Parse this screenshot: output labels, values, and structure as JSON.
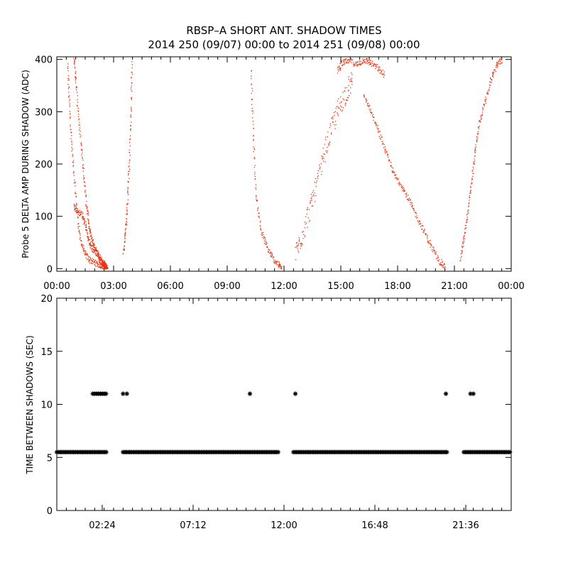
{
  "title_line1": "RBSP–A SHORT ANT. SHADOW TIMES",
  "title_line2": "2014 250 (09/07) 00:00 to 2014 251 (09/08) 00:00",
  "colors": {
    "top_points": "#e8320f",
    "bottom_points": "#000000",
    "axes": "#000000"
  },
  "chart_data": [
    {
      "type": "scatter",
      "name": "delta-amp-panel",
      "ylabel": "Probe 5 DELTA AMP DURING SHADOW (ADC)",
      "xlabel": "",
      "xlim": [
        0,
        24
      ],
      "ylim": [
        -5,
        405
      ],
      "yticks": [
        0,
        100,
        200,
        300,
        400
      ],
      "ytick_labels": [
        "0",
        "100",
        "200",
        "300",
        "400"
      ],
      "xticks": [
        0,
        3,
        6,
        9,
        12,
        15,
        18,
        21,
        24
      ],
      "xtick_labels": [
        "00:00",
        "03:00",
        "06:00",
        "09:00",
        "12:00",
        "15:00",
        "18:00",
        "21:00",
        "00:00"
      ],
      "series": [
        {
          "name": "shadow-1 descending",
          "x": [
            0.55,
            0.65,
            0.8,
            1.0,
            1.2,
            1.45,
            1.7,
            2.0,
            2.25,
            2.4,
            2.55,
            2.65
          ],
          "y": [
            390,
            310,
            220,
            130,
            60,
            30,
            18,
            12,
            8,
            5,
            3,
            1
          ]
        },
        {
          "name": "shadow-1 main",
          "x": [
            0.9,
            1.0,
            1.2,
            1.4,
            1.55,
            1.7,
            1.85,
            2.0,
            2.15,
            2.3,
            2.45,
            2.55,
            2.65
          ],
          "y": [
            405,
            350,
            260,
            180,
            120,
            80,
            55,
            40,
            28,
            15,
            8,
            4,
            2
          ]
        },
        {
          "name": "shadow-1 lower",
          "x": [
            0.9,
            1.05,
            1.3,
            1.5,
            1.65,
            1.85,
            2.1,
            2.3,
            2.5,
            2.6
          ],
          "y": [
            120,
            110,
            105,
            85,
            55,
            40,
            30,
            20,
            10,
            4
          ]
        },
        {
          "name": "shadow-2",
          "x": [
            3.5,
            3.6,
            3.7,
            3.8,
            3.9,
            3.95
          ],
          "y": [
            30,
            70,
            120,
            200,
            300,
            400
          ]
        },
        {
          "name": "shadow-3",
          "x": [
            10.25,
            10.35,
            10.5,
            10.8,
            11.1,
            11.4,
            11.7,
            11.85
          ],
          "y": [
            380,
            260,
            140,
            70,
            40,
            20,
            8,
            2
          ]
        },
        {
          "name": "shadow-4 rising",
          "x": [
            12.6,
            12.9,
            13.3,
            13.7,
            14.1,
            14.5,
            14.9,
            15.3,
            15.6
          ],
          "y": [
            30,
            60,
            110,
            160,
            220,
            270,
            310,
            340,
            360
          ]
        },
        {
          "name": "shadow-4 scatter",
          "x": [
            14.8,
            15.1,
            15.4,
            15.8,
            16.2,
            16.5,
            16.9,
            17.3
          ],
          "y": [
            380,
            395,
            400,
            390,
            400,
            395,
            385,
            370
          ]
        },
        {
          "name": "shadow-4 falling",
          "x": [
            16.2,
            16.6,
            17.0,
            17.4,
            17.8,
            18.2,
            18.6,
            19.0,
            19.4,
            19.8,
            20.2,
            20.5
          ],
          "y": [
            330,
            300,
            260,
            220,
            180,
            160,
            130,
            100,
            70,
            40,
            15,
            3
          ]
        },
        {
          "name": "shadow-5",
          "x": [
            21.3,
            21.5,
            21.7,
            21.9,
            22.1,
            22.3,
            22.6,
            22.9,
            23.2,
            23.5
          ],
          "y": [
            20,
            60,
            110,
            170,
            230,
            280,
            320,
            360,
            390,
            400
          ]
        }
      ]
    },
    {
      "type": "scatter",
      "name": "time-between-shadows-panel",
      "ylabel": "TIME BETWEEN SHADOWS (SEC)",
      "xlabel": "",
      "xlim": [
        0,
        24
      ],
      "ylim": [
        0,
        20
      ],
      "yticks": [
        0,
        5,
        10,
        15,
        20
      ],
      "ytick_labels": [
        "0",
        "5",
        "10",
        "15",
        "20"
      ],
      "xticks": [
        2.4,
        7.2,
        12.0,
        16.8,
        21.6
      ],
      "xtick_labels": [
        "02:24",
        "07:12",
        "12:00",
        "16:48",
        "21:36"
      ],
      "series": [
        {
          "name": "nominal",
          "segments": [
            [
              0.0,
              2.62
            ],
            [
              3.5,
              11.7
            ],
            [
              12.5,
              20.6
            ],
            [
              21.5,
              24.0
            ]
          ],
          "value": 5.5
        },
        {
          "name": "double-interval",
          "x": [
            1.9,
            2.0,
            2.1,
            2.2,
            2.3,
            2.4,
            2.5,
            2.6,
            3.5,
            3.7,
            10.2,
            12.6,
            20.55,
            21.85,
            22.0
          ],
          "y": [
            11,
            11,
            11,
            11,
            11,
            11,
            11,
            11,
            11,
            11,
            11,
            11,
            11,
            11,
            11
          ]
        }
      ]
    }
  ]
}
